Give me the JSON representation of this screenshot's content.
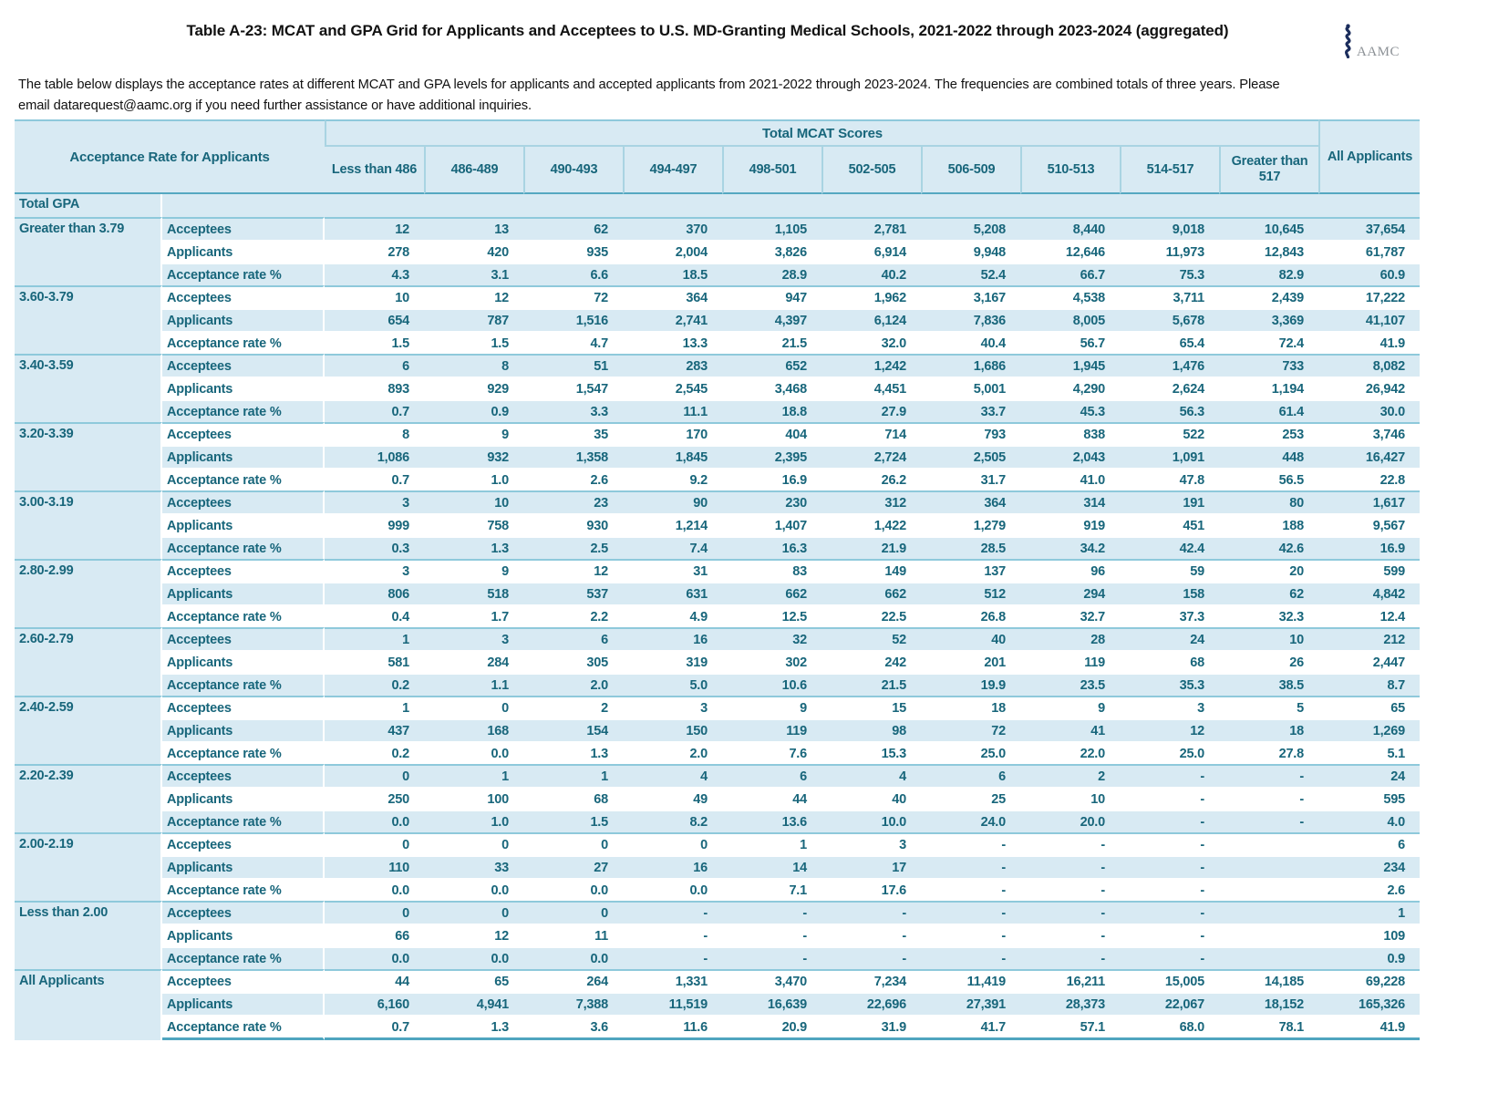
{
  "title": "Table A-23: MCAT and GPA Grid for Applicants and Acceptees to U.S. MD-Granting Medical Schools, 2021-2022 through 2023-2024 (aggregated)",
  "logo": {
    "text": "AAMC",
    "icon": "rod-of-asclepius",
    "icon_color": "#1b2d5c",
    "text_color": "#8c9196"
  },
  "description_lines": [
    "The table below displays the acceptance rates at different MCAT and GPA levels for applicants and accepted applicants  from 2021-2022 through 2023-2024. The frequencies are combined totals of three years. Please",
    "email datarequest@aamc.org if you need further assistance or have additional inquiries."
  ],
  "colors": {
    "row_blue": "#d8eaf3",
    "text_teal": "#18667b",
    "group_separator": "#8ec9db",
    "strong_border": "#55a8c1",
    "bottom_border": "#4fa5bf"
  },
  "table": {
    "corner_header": "Acceptance Rate for Applicants",
    "mcat_header": "Total MCAT Scores",
    "all_applicants_header": "All Applicants",
    "total_gpa_label": "Total GPA",
    "columns": [
      "Less than 486",
      "486-489",
      "490-493",
      "494-497",
      "498-501",
      "502-505",
      "506-509",
      "510-513",
      "514-517",
      "Greater than 517"
    ],
    "row_labels": [
      "Acceptees",
      "Applicants",
      "Acceptance rate %"
    ],
    "groups": [
      {
        "gpa": "Greater than 3.79",
        "acceptees": [
          "12",
          "13",
          "62",
          "370",
          "1,105",
          "2,781",
          "5,208",
          "8,440",
          "9,018",
          "10,645",
          "37,654"
        ],
        "applicants": [
          "278",
          "420",
          "935",
          "2,004",
          "3,826",
          "6,914",
          "9,948",
          "12,646",
          "11,973",
          "12,843",
          "61,787"
        ],
        "rate": [
          "4.3",
          "3.1",
          "6.6",
          "18.5",
          "28.9",
          "40.2",
          "52.4",
          "66.7",
          "75.3",
          "82.9",
          "60.9"
        ]
      },
      {
        "gpa": "3.60-3.79",
        "acceptees": [
          "10",
          "12",
          "72",
          "364",
          "947",
          "1,962",
          "3,167",
          "4,538",
          "3,711",
          "2,439",
          "17,222"
        ],
        "applicants": [
          "654",
          "787",
          "1,516",
          "2,741",
          "4,397",
          "6,124",
          "7,836",
          "8,005",
          "5,678",
          "3,369",
          "41,107"
        ],
        "rate": [
          "1.5",
          "1.5",
          "4.7",
          "13.3",
          "21.5",
          "32.0",
          "40.4",
          "56.7",
          "65.4",
          "72.4",
          "41.9"
        ]
      },
      {
        "gpa": "3.40-3.59",
        "acceptees": [
          "6",
          "8",
          "51",
          "283",
          "652",
          "1,242",
          "1,686",
          "1,945",
          "1,476",
          "733",
          "8,082"
        ],
        "applicants": [
          "893",
          "929",
          "1,547",
          "2,545",
          "3,468",
          "4,451",
          "5,001",
          "4,290",
          "2,624",
          "1,194",
          "26,942"
        ],
        "rate": [
          "0.7",
          "0.9",
          "3.3",
          "11.1",
          "18.8",
          "27.9",
          "33.7",
          "45.3",
          "56.3",
          "61.4",
          "30.0"
        ]
      },
      {
        "gpa": "3.20-3.39",
        "acceptees": [
          "8",
          "9",
          "35",
          "170",
          "404",
          "714",
          "793",
          "838",
          "522",
          "253",
          "3,746"
        ],
        "applicants": [
          "1,086",
          "932",
          "1,358",
          "1,845",
          "2,395",
          "2,724",
          "2,505",
          "2,043",
          "1,091",
          "448",
          "16,427"
        ],
        "rate": [
          "0.7",
          "1.0",
          "2.6",
          "9.2",
          "16.9",
          "26.2",
          "31.7",
          "41.0",
          "47.8",
          "56.5",
          "22.8"
        ]
      },
      {
        "gpa": "3.00-3.19",
        "acceptees": [
          "3",
          "10",
          "23",
          "90",
          "230",
          "312",
          "364",
          "314",
          "191",
          "80",
          "1,617"
        ],
        "applicants": [
          "999",
          "758",
          "930",
          "1,214",
          "1,407",
          "1,422",
          "1,279",
          "919",
          "451",
          "188",
          "9,567"
        ],
        "rate": [
          "0.3",
          "1.3",
          "2.5",
          "7.4",
          "16.3",
          "21.9",
          "28.5",
          "34.2",
          "42.4",
          "42.6",
          "16.9"
        ]
      },
      {
        "gpa": "2.80-2.99",
        "acceptees": [
          "3",
          "9",
          "12",
          "31",
          "83",
          "149",
          "137",
          "96",
          "59",
          "20",
          "599"
        ],
        "applicants": [
          "806",
          "518",
          "537",
          "631",
          "662",
          "662",
          "512",
          "294",
          "158",
          "62",
          "4,842"
        ],
        "rate": [
          "0.4",
          "1.7",
          "2.2",
          "4.9",
          "12.5",
          "22.5",
          "26.8",
          "32.7",
          "37.3",
          "32.3",
          "12.4"
        ]
      },
      {
        "gpa": "2.60-2.79",
        "acceptees": [
          "1",
          "3",
          "6",
          "16",
          "32",
          "52",
          "40",
          "28",
          "24",
          "10",
          "212"
        ],
        "applicants": [
          "581",
          "284",
          "305",
          "319",
          "302",
          "242",
          "201",
          "119",
          "68",
          "26",
          "2,447"
        ],
        "rate": [
          "0.2",
          "1.1",
          "2.0",
          "5.0",
          "10.6",
          "21.5",
          "19.9",
          "23.5",
          "35.3",
          "38.5",
          "8.7"
        ]
      },
      {
        "gpa": "2.40-2.59",
        "acceptees": [
          "1",
          "0",
          "2",
          "3",
          "9",
          "15",
          "18",
          "9",
          "3",
          "5",
          "65"
        ],
        "applicants": [
          "437",
          "168",
          "154",
          "150",
          "119",
          "98",
          "72",
          "41",
          "12",
          "18",
          "1,269"
        ],
        "rate": [
          "0.2",
          "0.0",
          "1.3",
          "2.0",
          "7.6",
          "15.3",
          "25.0",
          "22.0",
          "25.0",
          "27.8",
          "5.1"
        ]
      },
      {
        "gpa": "2.20-2.39",
        "acceptees": [
          "0",
          "1",
          "1",
          "4",
          "6",
          "4",
          "6",
          "2",
          "-",
          "-",
          "24"
        ],
        "applicants": [
          "250",
          "100",
          "68",
          "49",
          "44",
          "40",
          "25",
          "10",
          "-",
          "-",
          "595"
        ],
        "rate": [
          "0.0",
          "1.0",
          "1.5",
          "8.2",
          "13.6",
          "10.0",
          "24.0",
          "20.0",
          "-",
          "-",
          "4.0"
        ]
      },
      {
        "gpa": "2.00-2.19",
        "acceptees": [
          "0",
          "0",
          "0",
          "0",
          "1",
          "3",
          "-",
          "-",
          "-",
          "",
          "6"
        ],
        "applicants": [
          "110",
          "33",
          "27",
          "16",
          "14",
          "17",
          "-",
          "-",
          "-",
          "",
          "234"
        ],
        "rate": [
          "0.0",
          "0.0",
          "0.0",
          "0.0",
          "7.1",
          "17.6",
          "-",
          "-",
          "-",
          "",
          "2.6"
        ]
      },
      {
        "gpa": "Less than 2.00",
        "acceptees": [
          "0",
          "0",
          "0",
          "-",
          "-",
          "-",
          "-",
          "-",
          "-",
          "",
          "1"
        ],
        "applicants": [
          "66",
          "12",
          "11",
          "-",
          "-",
          "-",
          "-",
          "-",
          "-",
          "",
          "109"
        ],
        "rate": [
          "0.0",
          "0.0",
          "0.0",
          "-",
          "-",
          "-",
          "-",
          "-",
          "-",
          "",
          "0.9"
        ]
      },
      {
        "gpa": "All Applicants",
        "acceptees": [
          "44",
          "65",
          "264",
          "1,331",
          "3,470",
          "7,234",
          "11,419",
          "16,211",
          "15,005",
          "14,185",
          "69,228"
        ],
        "applicants": [
          "6,160",
          "4,941",
          "7,388",
          "11,519",
          "16,639",
          "22,696",
          "27,391",
          "28,373",
          "22,067",
          "18,152",
          "165,326"
        ],
        "rate": [
          "0.7",
          "1.3",
          "3.6",
          "11.6",
          "20.9",
          "31.9",
          "41.7",
          "57.1",
          "68.0",
          "78.1",
          "41.9"
        ]
      }
    ]
  }
}
